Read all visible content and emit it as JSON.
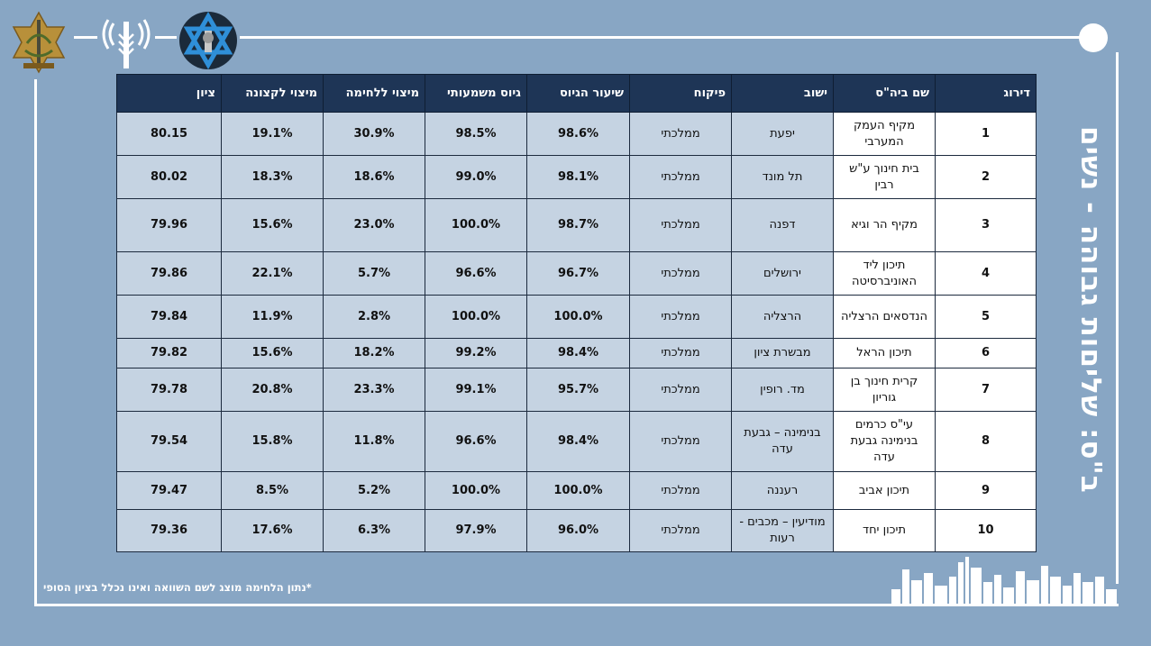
{
  "side_title": "ב\"ס: שליםות גבוהה - נשים",
  "table": {
    "headers": [
      "דירוג",
      "שם ביה\"ס",
      "ישוב",
      "פיקוח",
      "שיעור הגיוס",
      "גיוס משמעותי",
      "מיצוי ללחימה",
      "מיצוי לקצונה",
      "ציון"
    ],
    "rows": [
      {
        "rank": "1",
        "school": "מקיף העמק המערבי",
        "town": "יפעת",
        "supervision": "ממלכתי",
        "recruit_rate": "98.6%",
        "meaningful": "98.5%",
        "combat": "30.9%",
        "officer": "19.1%",
        "score": "80.15"
      },
      {
        "rank": "2",
        "school": "בית חינוך ע\"ש רבין",
        "town": "תל מונד",
        "supervision": "ממלכתי",
        "recruit_rate": "98.1%",
        "meaningful": "99.0%",
        "combat": "18.6%",
        "officer": "18.3%",
        "score": "80.02"
      },
      {
        "rank": "3",
        "school": "מקיף הר וגיא",
        "town": "דפנה",
        "supervision": "ממלכתי",
        "recruit_rate": "98.7%",
        "meaningful": "100.0%",
        "combat": "23.0%",
        "officer": "15.6%",
        "score": "79.96"
      },
      {
        "rank": "4",
        "school": "תיכון ליד האוניברסיטה",
        "town": "ירושלים",
        "supervision": "ממלכתי",
        "recruit_rate": "96.7%",
        "meaningful": "96.6%",
        "combat": "5.7%",
        "officer": "22.1%",
        "score": "79.86"
      },
      {
        "rank": "5",
        "school": "הנדסאים הרצליה",
        "town": "הרצליה",
        "supervision": "ממלכתי",
        "recruit_rate": "100.0%",
        "meaningful": "100.0%",
        "combat": "2.8%",
        "officer": "11.9%",
        "score": "79.84"
      },
      {
        "rank": "6",
        "school": "תיכון הראל",
        "town": "מבשרת ציון",
        "supervision": "ממלכתי",
        "recruit_rate": "98.4%",
        "meaningful": "99.2%",
        "combat": "18.2%",
        "officer": "15.6%",
        "score": "79.82"
      },
      {
        "rank": "7",
        "school": "קרית חינוך בן גוריון",
        "town": "מד. רופין",
        "supervision": "ממלכתי",
        "recruit_rate": "95.7%",
        "meaningful": "99.1%",
        "combat": "23.3%",
        "officer": "20.8%",
        "score": "79.78"
      },
      {
        "rank": "8",
        "school": "עי\"ס כרמים בנימינה גבעת עדה",
        "town": "בנימינה – גבעת עדה",
        "supervision": "ממלכתי",
        "recruit_rate": "98.4%",
        "meaningful": "96.6%",
        "combat": "11.8%",
        "officer": "15.8%",
        "score": "79.54"
      },
      {
        "rank": "9",
        "school": "תיכון אביב",
        "town": "רעננה",
        "supervision": "ממלכתי",
        "recruit_rate": "100.0%",
        "meaningful": "100.0%",
        "combat": "5.2%",
        "officer": "8.5%",
        "score": "79.47"
      },
      {
        "rank": "10",
        "school": "תיכון יחד",
        "town": "מודיעין – מכבים - רעות",
        "supervision": "ממלכתי",
        "recruit_rate": "96.0%",
        "meaningful": "97.9%",
        "combat": "6.3%",
        "officer": "17.6%",
        "score": "79.36"
      }
    ]
  },
  "footnote": "*נתון הלחימה מוצג לשם השוואה ואינו נכלל בציון הסופי",
  "colors": {
    "background": "#88a6c4",
    "header_bg": "#1e3556",
    "cell_bg": "#c5d3e2",
    "accent_white": "#ffffff"
  },
  "icons": [
    "idf-emblem-icon",
    "signal-antenna-icon",
    "star-of-david-logo-icon",
    "city-skyline-icon"
  ]
}
